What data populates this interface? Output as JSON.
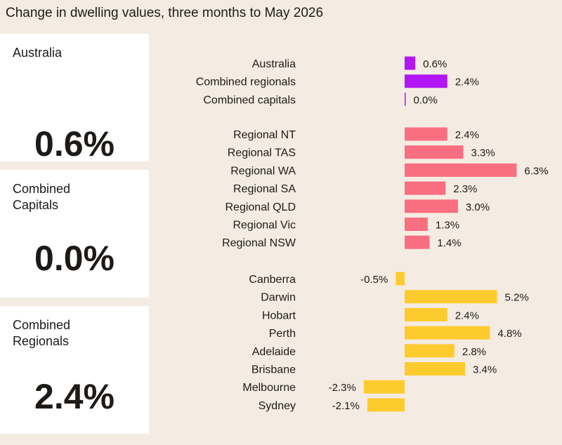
{
  "title": "Change in dwelling values, three months to May 2026",
  "cards": [
    {
      "label": "Australia",
      "value": "0.6%"
    },
    {
      "label": "Combined\nCapitals",
      "value": "0.0%"
    },
    {
      "label": "Combined\nRegionals",
      "value": "2.4%"
    }
  ],
  "colors": {
    "national": "#b216f5",
    "regional": "#f96e80",
    "capital": "#fdcb2e",
    "background": "#f4ece2",
    "card": "#ffffff"
  },
  "chart_data": {
    "type": "bar",
    "orientation": "horizontal",
    "groups": [
      {
        "color_key": "national",
        "categories": [
          "Australia",
          "Combined regionals",
          "Combined capitals"
        ],
        "values": [
          0.6,
          2.4,
          0.0
        ],
        "labels": [
          "0.6%",
          "2.4%",
          "0.0%"
        ]
      },
      {
        "color_key": "regional",
        "categories": [
          "Regional NT",
          "Regional TAS",
          "Regional WA",
          "Regional SA",
          "Regional QLD",
          "Regional Vic",
          "Regional NSW"
        ],
        "values": [
          2.4,
          3.3,
          6.3,
          2.3,
          3.0,
          1.3,
          1.4
        ],
        "labels": [
          "2.4%",
          "3.3%",
          "6.3%",
          "2.3%",
          "3.0%",
          "1.3%",
          "1.4%"
        ]
      },
      {
        "color_key": "capital",
        "categories": [
          "Canberra",
          "Darwin",
          "Hobart",
          "Perth",
          "Adelaide",
          "Brisbane",
          "Melbourne",
          "Sydney"
        ],
        "values": [
          -0.5,
          5.2,
          2.4,
          4.8,
          2.8,
          3.4,
          -2.3,
          -2.1
        ],
        "labels": [
          "-0.5%",
          "5.2%",
          "2.4%",
          "4.8%",
          "2.8%",
          "3.4%",
          "-2.3%",
          "-2.1%"
        ]
      }
    ]
  }
}
